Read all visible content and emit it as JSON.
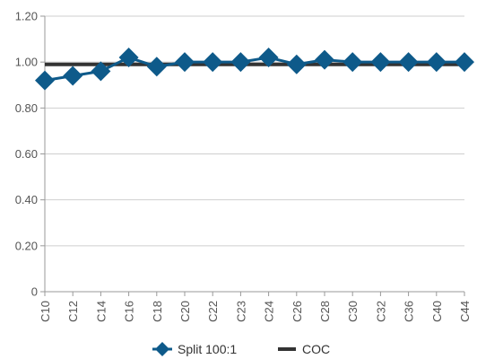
{
  "chart_data": {
    "type": "line",
    "categories": [
      "C10",
      "C12",
      "C14",
      "C16",
      "C18",
      "C20",
      "C22",
      "C23",
      "C24",
      "C26",
      "C28",
      "C30",
      "C32",
      "C36",
      "C40",
      "C44"
    ],
    "series": [
      {
        "name": "Split 100:1",
        "values": [
          0.92,
          0.94,
          0.96,
          1.02,
          0.98,
          1.0,
          1.0,
          1.0,
          1.02,
          0.99,
          1.01,
          1.0,
          1.0,
          1.0,
          1.0,
          1.0
        ],
        "color": "#0e5a8a",
        "marker": "diamond"
      },
      {
        "name": "COC",
        "values": [
          0.99,
          0.99,
          0.99,
          0.99,
          0.99,
          0.99,
          0.99,
          0.99,
          0.99,
          0.99,
          0.99,
          0.99,
          0.99,
          0.99,
          0.99,
          0.99
        ],
        "color": "#333333",
        "marker": "none"
      }
    ],
    "ylim": [
      0,
      1.2
    ],
    "y_ticks": [
      0,
      0.2,
      0.4,
      0.6,
      0.8,
      1.0,
      1.2
    ],
    "y_tick_labels": [
      "0",
      "0.20",
      "0.40",
      "0.60",
      "0.80",
      "1.00",
      "1.20"
    ],
    "grid": "horizontal",
    "legend_position": "bottom",
    "title": "",
    "xlabel": "",
    "ylabel": ""
  }
}
